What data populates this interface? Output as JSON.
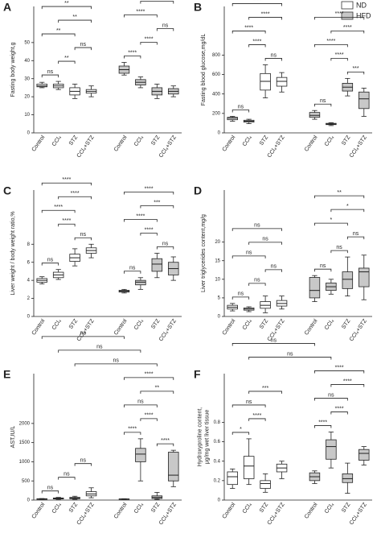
{
  "legend": [
    {
      "name": "ND",
      "color": "#ffffff"
    },
    {
      "name": "HFD",
      "color": "#c8c8c8"
    }
  ],
  "chart_data": [
    {
      "type": "box",
      "title": "A",
      "ylabel": [
        "Fasting body weight,g"
      ],
      "categories": [
        "Control",
        "CCl₄",
        "STZ",
        "CCl₄+STZ"
      ],
      "ylim": [
        0,
        70
      ],
      "yticks": [
        0,
        10,
        20,
        30,
        40,
        50
      ],
      "series": [
        {
          "color": "#ffffff",
          "boxes": [
            {
              "min": 25,
              "q1": 25.5,
              "median": 26,
              "q3": 27,
              "max": 28
            },
            {
              "min": 24,
              "q1": 25,
              "median": 26,
              "q3": 27,
              "max": 28.5
            },
            {
              "min": 19,
              "q1": 21,
              "median": 23,
              "q3": 25,
              "max": 27
            },
            {
              "min": 20,
              "q1": 22,
              "median": 23,
              "q3": 24,
              "max": 26
            }
          ]
        },
        {
          "color": "#c8c8c8",
          "boxes": [
            {
              "min": 32,
              "q1": 33,
              "median": 35,
              "q3": 37,
              "max": 39
            },
            {
              "min": 25,
              "q1": 26.5,
              "median": 28,
              "q3": 29.5,
              "max": 31
            },
            {
              "min": 19,
              "q1": 21,
              "median": 23,
              "q3": 25,
              "max": 27
            },
            {
              "min": 20,
              "q1": 21.5,
              "median": 23,
              "q3": 24.5,
              "max": 26
            }
          ]
        }
      ],
      "comparisons": [
        {
          "pair": [
            0,
            1
          ],
          "label": "ns"
        },
        {
          "pair": [
            1,
            2
          ],
          "label": "**"
        },
        {
          "pair": [
            2,
            3
          ],
          "label": "ns"
        },
        {
          "pair": [
            0,
            2
          ],
          "label": "**"
        },
        {
          "pair": [
            1,
            3
          ],
          "label": "**"
        },
        {
          "pair": [
            0,
            3
          ],
          "label": "**"
        },
        {
          "pair": [
            4,
            5
          ],
          "label": "****"
        },
        {
          "pair": [
            5,
            6
          ],
          "label": "****"
        },
        {
          "pair": [
            6,
            7
          ],
          "label": "ns"
        },
        {
          "pair": [
            4,
            6
          ],
          "label": "****"
        },
        {
          "pair": [
            5,
            7
          ],
          "label": "****"
        },
        {
          "pair": [
            4,
            7
          ],
          "label": "****"
        }
      ]
    },
    {
      "type": "box",
      "title": "B",
      "ylabel": [
        "Fasting blood glucose,mg/dL"
      ],
      "categories": [
        "Control",
        "CCl₄",
        "STZ",
        "CCl₄+STZ"
      ],
      "ylim": [
        0,
        1300
      ],
      "yticks": [
        0,
        200,
        400,
        600,
        800
      ],
      "series": [
        {
          "color": "#ffffff",
          "boxes": [
            {
              "min": 120,
              "q1": 135,
              "median": 150,
              "q3": 160,
              "max": 170
            },
            {
              "min": 95,
              "q1": 110,
              "median": 120,
              "q3": 130,
              "max": 140
            },
            {
              "min": 360,
              "q1": 440,
              "median": 530,
              "q3": 610,
              "max": 700
            },
            {
              "min": 420,
              "q1": 480,
              "median": 530,
              "q3": 570,
              "max": 620
            }
          ]
        },
        {
          "color": "#c8c8c8",
          "boxes": [
            {
              "min": 140,
              "q1": 160,
              "median": 180,
              "q3": 210,
              "max": 230
            },
            {
              "min": 75,
              "q1": 85,
              "median": 90,
              "q3": 98,
              "max": 105
            },
            {
              "min": 380,
              "q1": 430,
              "median": 470,
              "q3": 510,
              "max": 560
            },
            {
              "min": 170,
              "q1": 250,
              "median": 350,
              "q3": 420,
              "max": 460
            }
          ]
        }
      ],
      "comparisons": [
        {
          "pair": [
            0,
            1
          ],
          "label": "ns"
        },
        {
          "pair": [
            2,
            3
          ],
          "label": "ns"
        },
        {
          "pair": [
            1,
            2
          ],
          "label": "****"
        },
        {
          "pair": [
            0,
            2
          ],
          "label": "****"
        },
        {
          "pair": [
            1,
            3
          ],
          "label": "****"
        },
        {
          "pair": [
            0,
            3
          ],
          "label": "****"
        },
        {
          "pair": [
            4,
            5
          ],
          "label": "ns"
        },
        {
          "pair": [
            6,
            7
          ],
          "label": "***"
        },
        {
          "pair": [
            5,
            6
          ],
          "label": "****"
        },
        {
          "pair": [
            4,
            6
          ],
          "label": "****"
        },
        {
          "pair": [
            5,
            7
          ],
          "label": "****"
        },
        {
          "pair": [
            4,
            7
          ],
          "label": "****"
        }
      ]
    },
    {
      "type": "box",
      "title": "C",
      "ylabel": [
        "Liver weight / body weight ratio,%"
      ],
      "categories": [
        "Control",
        "CCl₄",
        "STZ",
        "CCl₄+STZ"
      ],
      "ylim": [
        0,
        14
      ],
      "yticks": [
        0,
        2,
        4,
        6,
        8
      ],
      "series": [
        {
          "color": "#ffffff",
          "boxes": [
            {
              "min": 3.6,
              "q1": 3.8,
              "median": 4.0,
              "q3": 4.2,
              "max": 4.4
            },
            {
              "min": 4.1,
              "q1": 4.3,
              "median": 4.6,
              "q3": 4.9,
              "max": 5.2
            },
            {
              "min": 5.6,
              "q1": 6.1,
              "median": 6.5,
              "q3": 6.9,
              "max": 7.5
            },
            {
              "min": 6.5,
              "q1": 7.0,
              "median": 7.3,
              "q3": 7.6,
              "max": 8.0
            }
          ]
        },
        {
          "color": "#c8c8c8",
          "boxes": [
            {
              "min": 2.6,
              "q1": 2.7,
              "median": 2.8,
              "q3": 2.9,
              "max": 3.0
            },
            {
              "min": 3.0,
              "q1": 3.5,
              "median": 3.8,
              "q3": 4.0,
              "max": 4.3
            },
            {
              "min": 4.3,
              "q1": 5.0,
              "median": 5.8,
              "q3": 6.4,
              "max": 7.0
            },
            {
              "min": 4.0,
              "q1": 4.6,
              "median": 5.3,
              "q3": 6.0,
              "max": 6.6
            }
          ]
        }
      ],
      "comparisons": [
        {
          "pair": [
            0,
            1
          ],
          "label": "ns"
        },
        {
          "pair": [
            2,
            3
          ],
          "label": "ns"
        },
        {
          "pair": [
            1,
            2
          ],
          "label": "****"
        },
        {
          "pair": [
            0,
            2
          ],
          "label": "****"
        },
        {
          "pair": [
            1,
            3
          ],
          "label": "****"
        },
        {
          "pair": [
            0,
            3
          ],
          "label": "****"
        },
        {
          "pair": [
            4,
            5
          ],
          "label": "ns"
        },
        {
          "pair": [
            6,
            7
          ],
          "label": "ns"
        },
        {
          "pair": [
            5,
            6
          ],
          "label": "****"
        },
        {
          "pair": [
            4,
            6
          ],
          "label": "****"
        },
        {
          "pair": [
            5,
            7
          ],
          "label": "***"
        },
        {
          "pair": [
            4,
            7
          ],
          "label": "****"
        }
      ]
    },
    {
      "type": "box",
      "title": "D",
      "ylabel": [
        "Liver triglycerides content,mg/g"
      ],
      "categories": [
        "Control",
        "CCl₄",
        "STZ",
        "CCl₄+STZ"
      ],
      "ylim": [
        0,
        34
      ],
      "yticks": [
        0,
        5,
        10,
        15,
        20
      ],
      "series": [
        {
          "color": "#ffffff",
          "boxes": [
            {
              "min": 1.5,
              "q1": 2.0,
              "median": 2.5,
              "q3": 3.0,
              "max": 3.5
            },
            {
              "min": 1.3,
              "q1": 1.7,
              "median": 2.0,
              "q3": 2.3,
              "max": 2.6
            },
            {
              "min": 1.0,
              "q1": 2.2,
              "median": 3.0,
              "q3": 4.0,
              "max": 5.5
            },
            {
              "min": 2.0,
              "q1": 2.8,
              "median": 3.5,
              "q3": 4.3,
              "max": 5.5
            }
          ]
        },
        {
          "color": "#c8c8c8",
          "boxes": [
            {
              "min": 4.0,
              "q1": 5.0,
              "median": 7.0,
              "q3": 10.5,
              "max": 11
            },
            {
              "min": 6.0,
              "q1": 7.0,
              "median": 8.0,
              "q3": 9.0,
              "max": 10
            },
            {
              "min": 5.5,
              "q1": 7.5,
              "median": 10.0,
              "q3": 12.0,
              "max": 16
            },
            {
              "min": 4.5,
              "q1": 8.0,
              "median": 12.0,
              "q3": 13.0,
              "max": 16.5
            }
          ]
        }
      ],
      "comparisons": [
        {
          "pair": [
            0,
            1
          ],
          "label": "ns"
        },
        {
          "pair": [
            1,
            2
          ],
          "label": "ns"
        },
        {
          "pair": [
            2,
            3
          ],
          "label": "ns"
        },
        {
          "pair": [
            0,
            2
          ],
          "label": "ns"
        },
        {
          "pair": [
            1,
            3
          ],
          "label": "ns"
        },
        {
          "pair": [
            0,
            3
          ],
          "label": "ns"
        },
        {
          "pair": [
            4,
            5
          ],
          "label": "ns"
        },
        {
          "pair": [
            5,
            6
          ],
          "label": "ns"
        },
        {
          "pair": [
            6,
            7
          ],
          "label": "ns"
        },
        {
          "pair": [
            4,
            6
          ],
          "label": "*"
        },
        {
          "pair": [
            5,
            7
          ],
          "label": "*"
        },
        {
          "pair": [
            4,
            7
          ],
          "label": "**"
        }
      ]
    },
    {
      "type": "box",
      "title": "E",
      "ylabel": [
        "AST,IU/L"
      ],
      "categories": [
        "Control",
        "CCl₄",
        "STZ",
        "CCl₄+STZ"
      ],
      "ylim": [
        0,
        3300
      ],
      "yticks": [
        0,
        500,
        1000,
        1500,
        2000
      ],
      "series": [
        {
          "color": "#ffffff",
          "boxes": [
            {
              "min": 15,
              "q1": 20,
              "median": 30,
              "q3": 35,
              "max": 40
            },
            {
              "min": 20,
              "q1": 30,
              "median": 40,
              "q3": 55,
              "max": 70
            },
            {
              "min": 20,
              "q1": 35,
              "median": 50,
              "q3": 70,
              "max": 100
            },
            {
              "min": 60,
              "q1": 110,
              "median": 160,
              "q3": 220,
              "max": 320
            }
          ]
        },
        {
          "color": "#c8c8c8",
          "boxes": [
            {
              "min": 15,
              "q1": 20,
              "median": 25,
              "q3": 30,
              "max": 35
            },
            {
              "min": 500,
              "q1": 1000,
              "median": 1200,
              "q3": 1350,
              "max": 1600
            },
            {
              "min": 20,
              "q1": 40,
              "median": 70,
              "q3": 110,
              "max": 200
            },
            {
              "min": 350,
              "q1": 500,
              "median": 650,
              "q3": 1250,
              "max": 1300
            }
          ]
        }
      ],
      "comparisons": [
        {
          "pair": [
            0,
            1
          ],
          "label": "ns"
        },
        {
          "pair": [
            1,
            2
          ],
          "label": "ns"
        },
        {
          "pair": [
            2,
            3
          ],
          "label": "ns"
        },
        {
          "pair": [
            4,
            5
          ],
          "label": "****"
        },
        {
          "pair": [
            6,
            7
          ],
          "label": "****"
        },
        {
          "pair": [
            5,
            6
          ],
          "label": "****"
        },
        {
          "pair": [
            4,
            6
          ],
          "label": "ns"
        },
        {
          "pair": [
            5,
            7
          ],
          "label": "**"
        },
        {
          "pair": [
            4,
            7
          ],
          "label": "****"
        },
        {
          "pair": [
            2,
            6
          ],
          "label": "ns"
        },
        {
          "pair": [
            1,
            5
          ],
          "label": "ns"
        },
        {
          "pair": [
            0,
            4
          ],
          "label": "ns"
        }
      ]
    },
    {
      "type": "box",
      "title": "F",
      "ylabel": [
        "Hydroxyproline content,",
        "μg/mg wet liver tissue"
      ],
      "categories": [
        "Control",
        "CCl₄",
        "STZ",
        "CCl₄+STZ"
      ],
      "ylim": [
        0,
        1.3
      ],
      "yticks": [
        0,
        0.2,
        0.4,
        0.6,
        0.8
      ],
      "series": [
        {
          "color": "#ffffff",
          "boxes": [
            {
              "min": 0.12,
              "q1": 0.16,
              "median": 0.24,
              "q3": 0.29,
              "max": 0.32
            },
            {
              "min": 0.16,
              "q1": 0.22,
              "median": 0.35,
              "q3": 0.45,
              "max": 0.63
            },
            {
              "min": 0.08,
              "q1": 0.12,
              "median": 0.17,
              "q3": 0.2,
              "max": 0.27
            },
            {
              "min": 0.22,
              "q1": 0.29,
              "median": 0.33,
              "q3": 0.37,
              "max": 0.4
            }
          ]
        },
        {
          "color": "#c8c8c8",
          "boxes": [
            {
              "min": 0.17,
              "q1": 0.2,
              "median": 0.24,
              "q3": 0.28,
              "max": 0.3
            },
            {
              "min": 0.33,
              "q1": 0.42,
              "median": 0.55,
              "q3": 0.62,
              "max": 0.7
            },
            {
              "min": 0.07,
              "q1": 0.18,
              "median": 0.22,
              "q3": 0.27,
              "max": 0.38
            },
            {
              "min": 0.36,
              "q1": 0.41,
              "median": 0.48,
              "q3": 0.52,
              "max": 0.55
            }
          ]
        }
      ],
      "comparisons": [
        {
          "pair": [
            0,
            1
          ],
          "label": "*"
        },
        {
          "pair": [
            1,
            2
          ],
          "label": "****"
        },
        {
          "pair": [
            0,
            2
          ],
          "label": "ns"
        },
        {
          "pair": [
            1,
            3
          ],
          "label": "***"
        },
        {
          "pair": [
            4,
            5
          ],
          "label": "****"
        },
        {
          "pair": [
            5,
            6
          ],
          "label": "****"
        },
        {
          "pair": [
            4,
            6
          ],
          "label": "ns"
        },
        {
          "pair": [
            5,
            7
          ],
          "label": "****"
        },
        {
          "pair": [
            4,
            7
          ],
          "label": "****"
        },
        {
          "pair": [
            1,
            5
          ],
          "label": "ns"
        },
        {
          "pair": [
            0,
            4
          ],
          "label": "ns"
        }
      ]
    }
  ]
}
